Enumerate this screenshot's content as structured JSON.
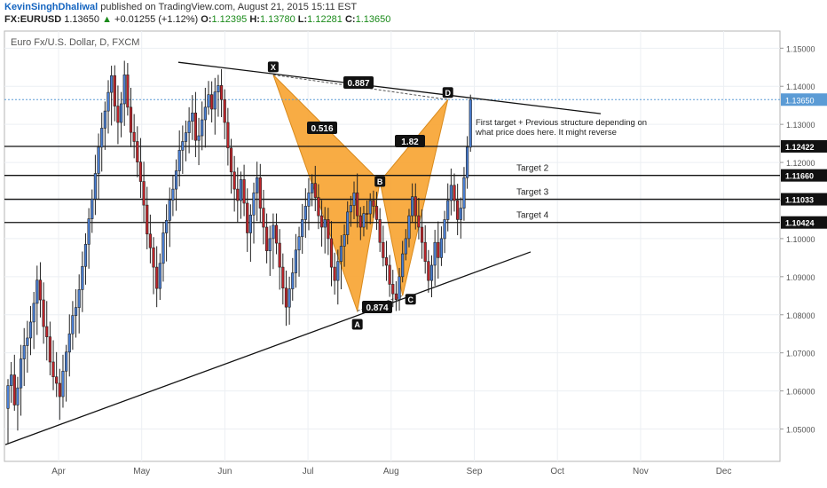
{
  "header": {
    "author": "KevinSinghDhaliwal",
    "published": "published on TradingView.com, August 21, 2015 15:11 EST",
    "symbol": "FX:EURUSD",
    "last": "1.13650",
    "change_arrow": "▲",
    "change": "+0.01255 (+1.12%)",
    "o_label": "O:",
    "o": "1.12395",
    "h_label": "H:",
    "h": "1.13780",
    "l_label": "L:",
    "l": "1.12281",
    "c_label": "C:",
    "c": "1.13650"
  },
  "chart_data": {
    "type": "candlestick",
    "title": "Euro Fx/U.S. Dollar, D, FXCM",
    "xlabel": "",
    "ylabel": "",
    "ylim": [
      1.0415,
      1.1545
    ],
    "x_tick_labels": [
      "Apr",
      "May",
      "Jun",
      "Jul",
      "Aug",
      "Sep",
      "Oct",
      "Nov",
      "Dec"
    ],
    "y_ticks": [
      1.05,
      1.06,
      1.07,
      1.08,
      1.09,
      1.1,
      1.11,
      1.12,
      1.13,
      1.14,
      1.15
    ],
    "y_tick_labels": [
      "1.05000",
      "1.06000",
      "1.07000",
      "1.08000",
      "1.09000",
      "1.10000",
      "1.11000",
      "1.12000",
      "1.13000",
      "1.14000",
      "1.15000"
    ],
    "bull_color": "#4a7fd4",
    "bear_color": "#c0252b",
    "pattern_color": "#f7a02a",
    "current_price": {
      "value": 1.1365,
      "label": "1.13650",
      "color": "#5b9bd5"
    },
    "levels": [
      {
        "value": 1.12422,
        "label": "1.12422"
      },
      {
        "value": 1.1166,
        "label": "1.11660",
        "text": "Target 2"
      },
      {
        "value": 1.11033,
        "label": "1.11033",
        "text": "Target 3"
      },
      {
        "value": 1.10424,
        "label": "1.10424",
        "text": "Target 4"
      }
    ],
    "pattern_points": [
      {
        "label": "X",
        "price": 1.143
      },
      {
        "label": "A",
        "price": 1.081
      },
      {
        "label": "B",
        "price": 1.115
      },
      {
        "label": "C",
        "price": 1.085
      },
      {
        "label": "D",
        "price": 1.1365
      }
    ],
    "ratios": [
      "0.887",
      "0.516",
      "1.82",
      "0.874"
    ],
    "annotation": "First target + Previous structure depending on what price does here. It might reverse",
    "candles": [
      [
        1.0554,
        1.0631,
        1.0462,
        1.0614
      ],
      [
        1.0614,
        1.0676,
        1.0569,
        1.0642
      ],
      [
        1.0642,
        1.0695,
        1.0548,
        1.0563
      ],
      [
        1.0563,
        1.0637,
        1.0496,
        1.0608
      ],
      [
        1.0608,
        1.0721,
        1.0535,
        1.0684
      ],
      [
        1.0684,
        1.0765,
        1.0613,
        1.0719
      ],
      [
        1.0719,
        1.0784,
        1.0648,
        1.0739
      ],
      [
        1.0739,
        1.0823,
        1.0694,
        1.0781
      ],
      [
        1.0781,
        1.086,
        1.071,
        1.083
      ],
      [
        1.083,
        1.0929,
        1.0747,
        1.0891
      ],
      [
        1.0891,
        1.0938,
        1.0793,
        1.0839
      ],
      [
        1.0839,
        1.0885,
        1.0724,
        1.0769
      ],
      [
        1.0769,
        1.0836,
        1.068,
        1.0742
      ],
      [
        1.0742,
        1.0782,
        1.0641,
        1.0676
      ],
      [
        1.0676,
        1.0733,
        1.0602,
        1.0637
      ],
      [
        1.0637,
        1.0702,
        1.0584,
        1.062
      ],
      [
        1.062,
        1.0658,
        1.0524,
        1.0585
      ],
      [
        1.0585,
        1.0695,
        1.0556,
        1.0652
      ],
      [
        1.0652,
        1.0721,
        1.0572,
        1.0702
      ],
      [
        1.0702,
        1.0801,
        1.0638,
        1.075
      ],
      [
        1.075,
        1.0836,
        1.0708,
        1.0798
      ],
      [
        1.0798,
        1.0867,
        1.074,
        1.0819
      ],
      [
        1.0819,
        1.0906,
        1.0751,
        1.0866
      ],
      [
        1.0866,
        1.0966,
        1.0807,
        1.0927
      ],
      [
        1.0927,
        1.1014,
        1.0879,
        1.0985
      ],
      [
        1.0985,
        1.108,
        1.0921,
        1.1052
      ],
      [
        1.1052,
        1.1129,
        1.1015,
        1.1104
      ],
      [
        1.1104,
        1.122,
        1.1062,
        1.1171
      ],
      [
        1.1171,
        1.1276,
        1.1103,
        1.124
      ],
      [
        1.124,
        1.1331,
        1.1176,
        1.129
      ],
      [
        1.129,
        1.136,
        1.1233,
        1.1335
      ],
      [
        1.1335,
        1.1416,
        1.1276,
        1.1384
      ],
      [
        1.1384,
        1.1454,
        1.1297,
        1.1428
      ],
      [
        1.1428,
        1.1455,
        1.1308,
        1.1348
      ],
      [
        1.1348,
        1.1402,
        1.1248,
        1.1305
      ],
      [
        1.1305,
        1.1385,
        1.1266,
        1.1354
      ],
      [
        1.1354,
        1.1467,
        1.1296,
        1.143
      ],
      [
        1.143,
        1.1461,
        1.1323,
        1.1345
      ],
      [
        1.1345,
        1.1396,
        1.124,
        1.1279
      ],
      [
        1.1279,
        1.1327,
        1.1211,
        1.1255
      ],
      [
        1.1255,
        1.1295,
        1.1161,
        1.1201
      ],
      [
        1.1201,
        1.1264,
        1.1107,
        1.115
      ],
      [
        1.115,
        1.1202,
        1.1041,
        1.1088
      ],
      [
        1.1088,
        1.1136,
        1.0972,
        1.1012
      ],
      [
        1.1012,
        1.1063,
        1.0935,
        1.0976
      ],
      [
        1.0976,
        1.1004,
        1.0854,
        1.0925
      ],
      [
        1.0925,
        1.098,
        1.082,
        1.0869
      ],
      [
        1.0869,
        1.0961,
        1.0839,
        1.0935
      ],
      [
        1.0935,
        1.1041,
        1.0887,
        1.1015
      ],
      [
        1.1015,
        1.109,
        1.094,
        1.1048
      ],
      [
        1.1048,
        1.1134,
        1.0978,
        1.1101
      ],
      [
        1.1101,
        1.1167,
        1.1059,
        1.113
      ],
      [
        1.113,
        1.1208,
        1.1073,
        1.1178
      ],
      [
        1.1178,
        1.1284,
        1.1137,
        1.1232
      ],
      [
        1.1232,
        1.1297,
        1.117,
        1.1255
      ],
      [
        1.1255,
        1.131,
        1.1203,
        1.1278
      ],
      [
        1.1278,
        1.1345,
        1.1224,
        1.1308
      ],
      [
        1.1308,
        1.1377,
        1.1259,
        1.133
      ],
      [
        1.133,
        1.1385,
        1.1214,
        1.1258
      ],
      [
        1.1258,
        1.1317,
        1.1193,
        1.127
      ],
      [
        1.127,
        1.136,
        1.1232,
        1.1312
      ],
      [
        1.1312,
        1.1396,
        1.1239,
        1.1345
      ],
      [
        1.1345,
        1.1414,
        1.1325,
        1.1378
      ],
      [
        1.1378,
        1.1413,
        1.1305,
        1.134
      ],
      [
        1.134,
        1.1422,
        1.1273,
        1.1385
      ],
      [
        1.1385,
        1.143,
        1.132,
        1.1402
      ],
      [
        1.1402,
        1.1445,
        1.1319,
        1.1365
      ],
      [
        1.1365,
        1.1392,
        1.1261,
        1.1305
      ],
      [
        1.1305,
        1.1343,
        1.1192,
        1.1238
      ],
      [
        1.1238,
        1.1262,
        1.1118,
        1.1175
      ],
      [
        1.1175,
        1.1217,
        1.1071,
        1.113
      ],
      [
        1.113,
        1.1187,
        1.1043,
        1.11
      ],
      [
        1.11,
        1.1176,
        1.1052,
        1.1155
      ],
      [
        1.1155,
        1.1194,
        1.1059,
        1.1093
      ],
      [
        1.1093,
        1.1132,
        1.0965,
        1.1015
      ],
      [
        1.1015,
        1.109,
        1.0939,
        1.1062
      ],
      [
        1.1062,
        1.1147,
        1.0987,
        1.112
      ],
      [
        1.112,
        1.1202,
        1.1046,
        1.116
      ],
      [
        1.116,
        1.1196,
        1.1042,
        1.108
      ],
      [
        1.108,
        1.1128,
        1.0985,
        1.103
      ],
      [
        1.103,
        1.1066,
        1.0935,
        1.0968
      ],
      [
        1.0968,
        1.1034,
        1.0902,
        1.1
      ],
      [
        1.1,
        1.1066,
        1.092,
        1.1035
      ],
      [
        1.1035,
        1.1066,
        1.0959,
        1.0988
      ],
      [
        1.0988,
        1.1025,
        1.0866,
        1.0925
      ],
      [
        1.0925,
        1.0961,
        1.0827,
        1.087
      ],
      [
        1.087,
        1.0916,
        1.0771,
        1.082
      ],
      [
        1.082,
        1.09,
        1.0774,
        1.0868
      ],
      [
        1.0868,
        1.0949,
        1.0837,
        1.091
      ],
      [
        1.091,
        1.1012,
        1.0871,
        1.097
      ],
      [
        1.097,
        1.1031,
        1.09,
        1.1005
      ],
      [
        1.1005,
        1.1091,
        1.096,
        1.105
      ],
      [
        1.105,
        1.1132,
        1.1002,
        1.1085
      ],
      [
        1.1085,
        1.1159,
        1.1022,
        1.112
      ],
      [
        1.112,
        1.1169,
        1.1085,
        1.1145
      ],
      [
        1.1145,
        1.1191,
        1.1072,
        1.1108
      ],
      [
        1.1108,
        1.1143,
        1.1025,
        1.106
      ],
      [
        1.106,
        1.1101,
        1.0979,
        1.103
      ],
      [
        1.103,
        1.1083,
        1.0961,
        1.105
      ],
      [
        1.105,
        1.1081,
        1.0957,
        1.1
      ],
      [
        1.1,
        1.1046,
        1.0875,
        1.0925
      ],
      [
        1.0925,
        1.0963,
        1.0853,
        1.089
      ],
      [
        1.089,
        1.0971,
        1.0827,
        1.094
      ],
      [
        1.094,
        1.1009,
        1.0867,
        1.098
      ],
      [
        1.098,
        1.1037,
        1.0926,
        1.101
      ],
      [
        1.101,
        1.1098,
        1.0985,
        1.107
      ],
      [
        1.107,
        1.1112,
        1.1031,
        1.1087
      ],
      [
        1.1087,
        1.115,
        1.1051,
        1.112
      ],
      [
        1.112,
        1.1171,
        1.1029,
        1.106
      ],
      [
        1.106,
        1.1083,
        1.0996,
        1.103
      ],
      [
        1.103,
        1.1086,
        1.1006,
        1.1066
      ],
      [
        1.1066,
        1.11,
        1.1024,
        1.1065
      ],
      [
        1.1065,
        1.1119,
        1.1038,
        1.11
      ],
      [
        1.11,
        1.1126,
        1.1054,
        1.1085
      ],
      [
        1.1085,
        1.1123,
        1.1023,
        1.105
      ],
      [
        1.105,
        1.108,
        1.0965,
        1.099
      ],
      [
        1.099,
        1.1034,
        1.0927,
        1.095
      ],
      [
        1.095,
        1.0994,
        1.0889,
        1.093
      ],
      [
        1.093,
        1.0957,
        1.0847,
        1.088
      ],
      [
        1.088,
        1.0918,
        1.082,
        1.0855
      ],
      [
        1.0855,
        1.0888,
        1.081,
        1.084
      ],
      [
        1.084,
        1.0923,
        1.0811,
        1.09
      ],
      [
        1.09,
        1.0994,
        1.0885,
        1.096
      ],
      [
        1.096,
        1.1025,
        1.0943,
        1.1
      ],
      [
        1.1,
        1.1078,
        1.0977,
        1.106
      ],
      [
        1.106,
        1.1145,
        1.1042,
        1.111
      ],
      [
        1.111,
        1.1145,
        1.1024,
        1.106
      ],
      [
        1.106,
        1.1107,
        1.0998,
        1.103
      ],
      [
        1.103,
        1.1077,
        1.0947,
        1.099
      ],
      [
        1.099,
        1.1035,
        1.0908,
        1.094
      ],
      [
        1.094,
        1.097,
        1.0858,
        1.089
      ],
      [
        1.089,
        1.0956,
        1.0846,
        1.093
      ],
      [
        1.093,
        1.1023,
        1.0876,
        1.099
      ],
      [
        1.099,
        1.1045,
        1.0895,
        1.095
      ],
      [
        1.095,
        1.1032,
        1.0928,
        1.1
      ],
      [
        1.1,
        1.1073,
        1.0962,
        1.105
      ],
      [
        1.105,
        1.1145,
        1.1019,
        1.11
      ],
      [
        1.11,
        1.1184,
        1.1061,
        1.114
      ],
      [
        1.114,
        1.1171,
        1.1071,
        1.11
      ],
      [
        1.11,
        1.1144,
        1.1009,
        1.105
      ],
      [
        1.105,
        1.1108,
        1.1,
        1.108
      ],
      [
        1.108,
        1.1188,
        1.1047,
        1.116
      ],
      [
        1.116,
        1.1269,
        1.1131,
        1.124
      ],
      [
        1.124,
        1.1378,
        1.1228,
        1.1365
      ]
    ]
  }
}
